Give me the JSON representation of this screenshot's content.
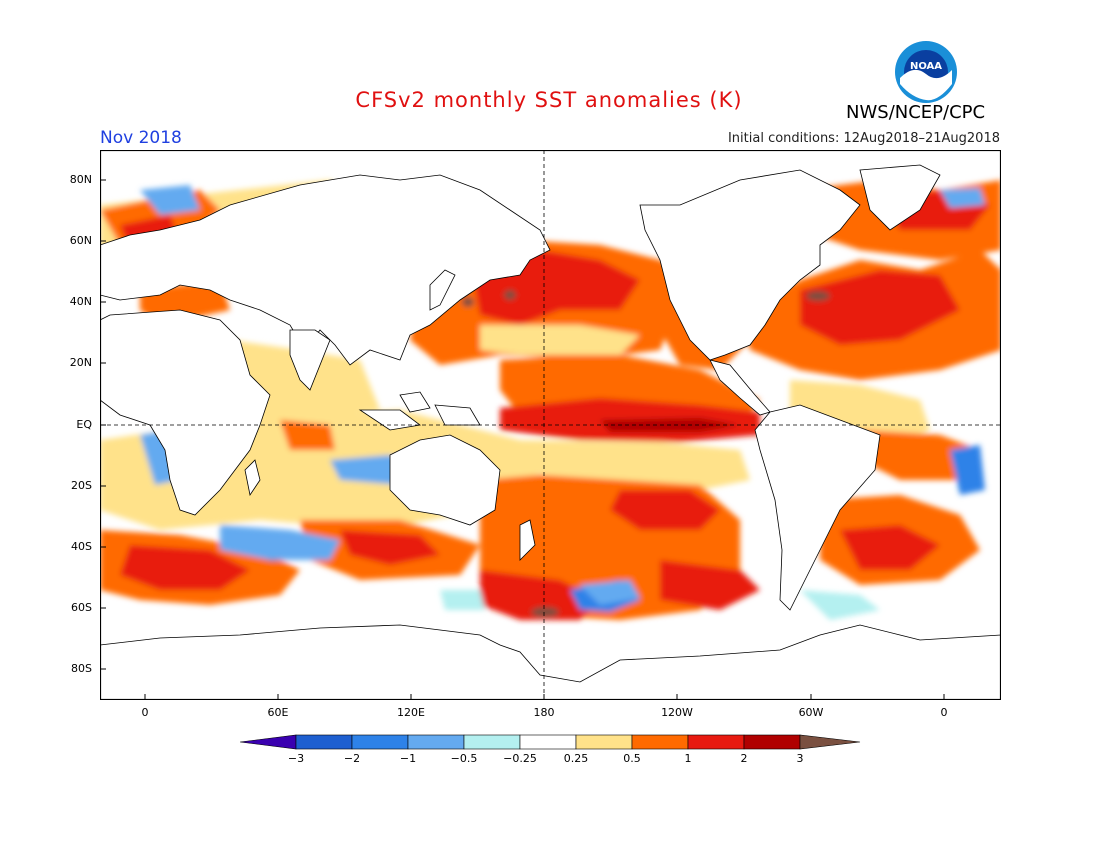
{
  "title": "CFSv2 monthly SST anomalies (K)",
  "month": "Nov 2018",
  "initial_conditions": "Initial conditions: 12Aug2018–21Aug2018",
  "agency": "NWS/NCEP/CPC",
  "logo_text": "NOAA",
  "map": {
    "projection": "equirectangular",
    "lon_range": [
      -20,
      20
    ],
    "lat_range": [
      -90,
      90
    ],
    "lat_ticks": [
      "80N",
      "60N",
      "40N",
      "20N",
      "EQ",
      "20S",
      "40S",
      "60S",
      "80S"
    ],
    "lon_ticks": [
      "0",
      "60E",
      "120E",
      "180",
      "120W",
      "60W",
      "0"
    ],
    "reference_lines": [
      "equator",
      "dateline"
    ]
  },
  "colorbar": {
    "labels": [
      "−3",
      "−2",
      "−1",
      "−0.5",
      "−0.25",
      "0.25",
      "0.5",
      "1",
      "2",
      "3"
    ],
    "colors": [
      "#3a00b0",
      "#1e5fd0",
      "#2e82e8",
      "#64aaf0",
      "#b4f0f0",
      "#ffffff",
      "#ffe28a",
      "#ff6a00",
      "#e81a10",
      "#b00000",
      "#7a5040"
    ]
  }
}
